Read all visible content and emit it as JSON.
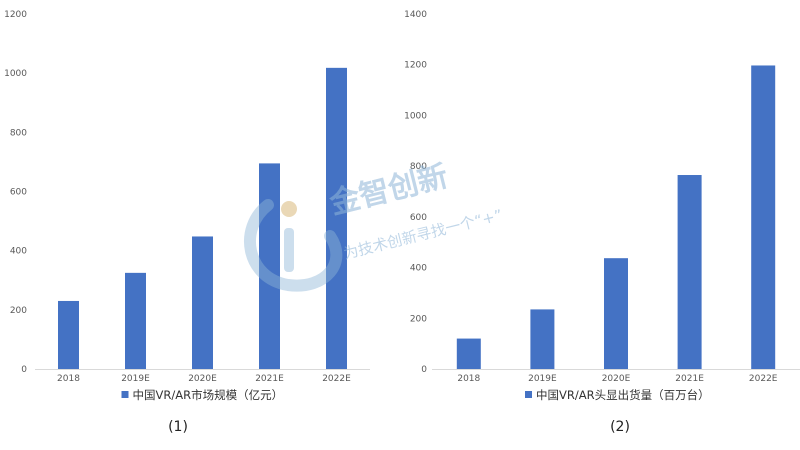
{
  "chart_data": [
    {
      "type": "bar",
      "categories": [
        "2018",
        "2019E",
        "2020E",
        "2021E",
        "2022E"
      ],
      "series": [
        {
          "name": "中国VR/AR市场规模（亿元）",
          "values": [
            230,
            325,
            448,
            695,
            1018
          ]
        }
      ],
      "ylim": [
        0,
        1200
      ],
      "yticks": [
        0,
        200,
        400,
        600,
        800,
        1000,
        1200
      ],
      "grid": false,
      "legend": "bottom",
      "caption": "(1)",
      "bar_color": "#4472c4"
    },
    {
      "type": "bar",
      "categories": [
        "2018",
        "2019E",
        "2020E",
        "2021E",
        "2022E"
      ],
      "series": [
        {
          "name": "中国VR/AR头显出货量（百万台）",
          "values": [
            120,
            235,
            437,
            765,
            1197
          ]
        }
      ],
      "ylim": [
        0,
        1400
      ],
      "yticks": [
        0,
        200,
        400,
        600,
        800,
        1000,
        1200,
        1400
      ],
      "grid": false,
      "legend": "bottom",
      "caption": "(2)",
      "bar_color": "#4472c4"
    }
  ],
  "watermark": {
    "title": "金智创新",
    "subtitle": "为技术创新寻找一个“+”"
  }
}
